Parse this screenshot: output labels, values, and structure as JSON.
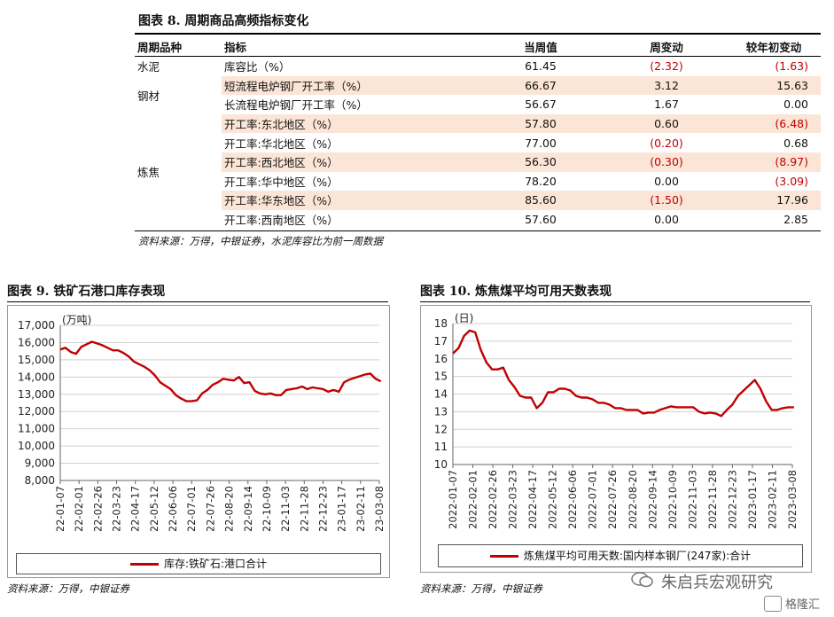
{
  "fig8": {
    "title": "图表 8. 周期商品高频指标变化",
    "headers": [
      "周期品种",
      "指标",
      "当周值",
      "周变动",
      "较年初变动"
    ],
    "groups": [
      {
        "name": "水泥",
        "rows": [
          {
            "indicator": "库容比（%）",
            "value": "61.45",
            "weekly": "(2.32)",
            "ytd": "(1.63)",
            "weekly_neg": true,
            "ytd_neg": true,
            "shade": false
          }
        ]
      },
      {
        "name": "钢材",
        "rows": [
          {
            "indicator": "短流程电炉钢厂开工率（%）",
            "value": "66.67",
            "weekly": "3.12",
            "ytd": "15.63",
            "weekly_neg": false,
            "ytd_neg": false,
            "shade": true
          },
          {
            "indicator": "长流程电炉钢厂开工率（%）",
            "value": "56.67",
            "weekly": "1.67",
            "ytd": "0.00",
            "weekly_neg": false,
            "ytd_neg": false,
            "shade": false
          }
        ]
      },
      {
        "name": "炼焦",
        "rows": [
          {
            "indicator": "开工率:东北地区（%）",
            "value": "57.80",
            "weekly": "0.60",
            "ytd": "(6.48)",
            "weekly_neg": false,
            "ytd_neg": true,
            "shade": true
          },
          {
            "indicator": "开工率:华北地区（%）",
            "value": "77.00",
            "weekly": "(0.20)",
            "ytd": "0.68",
            "weekly_neg": true,
            "ytd_neg": false,
            "shade": false
          },
          {
            "indicator": "开工率:西北地区（%）",
            "value": "56.30",
            "weekly": "(0.30)",
            "ytd": "(8.97)",
            "weekly_neg": true,
            "ytd_neg": true,
            "shade": true
          },
          {
            "indicator": "开工率:华中地区（%）",
            "value": "78.20",
            "weekly": "0.00",
            "ytd": "(3.09)",
            "weekly_neg": false,
            "ytd_neg": true,
            "shade": false
          },
          {
            "indicator": "开工率:华东地区（%）",
            "value": "85.60",
            "weekly": "(1.50)",
            "ytd": "17.96",
            "weekly_neg": true,
            "ytd_neg": false,
            "shade": true
          },
          {
            "indicator": "开工率:西南地区（%）",
            "value": "57.60",
            "weekly": "0.00",
            "ytd": "2.85",
            "weekly_neg": false,
            "ytd_neg": false,
            "shade": false
          }
        ]
      }
    ],
    "source": "资料来源：万得，中银证券，水泥库容比为前一周数据"
  },
  "fig9": {
    "title": "图表 9. 铁矿石港口库存表现",
    "source": "资料来源：万得，中银证券"
  },
  "fig10": {
    "title": "图表 10. 炼焦煤平均可用天数表现",
    "source": "资料来源：万得，中银证券"
  },
  "watermark": {
    "account": "朱启兵宏观研究",
    "logo_text": "格隆汇"
  },
  "colors": {
    "series": "#c00000",
    "negative": "#c00000",
    "shade": "#fbe5d6"
  },
  "chart_data": [
    {
      "type": "line",
      "unit_label": "(万吨)",
      "ylim": [
        8000,
        17000
      ],
      "yticks": [
        "8,000",
        "9,000",
        "10,000",
        "11,000",
        "12,000",
        "13,000",
        "14,000",
        "15,000",
        "16,000",
        "17,000"
      ],
      "xticks": [
        "2022-01-07",
        "2022-02-01",
        "2022-02-26",
        "2022-03-23",
        "2022-04-17",
        "2022-05-12",
        "2022-06-06",
        "2022-07-01",
        "2022-07-26",
        "2022-08-20",
        "2022-09-14",
        "2022-10-09",
        "2022-11-03",
        "2022-11-28",
        "2022-12-23",
        "2023-01-17",
        "2023-02-11",
        "2023-03-08"
      ],
      "grid": true,
      "legend_position": "bottom",
      "series": [
        {
          "name": "库存:铁矿石:港口合计",
          "x": [
            "2022-01-07",
            "2022-01-14",
            "2022-01-21",
            "2022-01-28",
            "2022-02-04",
            "2022-02-11",
            "2022-02-18",
            "2022-02-25",
            "2022-03-04",
            "2022-03-11",
            "2022-03-18",
            "2022-03-25",
            "2022-04-01",
            "2022-04-08",
            "2022-04-15",
            "2022-04-22",
            "2022-04-29",
            "2022-05-06",
            "2022-05-13",
            "2022-05-20",
            "2022-05-27",
            "2022-06-03",
            "2022-06-10",
            "2022-06-17",
            "2022-06-24",
            "2022-07-01",
            "2022-07-08",
            "2022-07-15",
            "2022-07-22",
            "2022-07-29",
            "2022-08-05",
            "2022-08-12",
            "2022-08-19",
            "2022-08-26",
            "2022-09-02",
            "2022-09-09",
            "2022-09-16",
            "2022-09-23",
            "2022-09-30",
            "2022-10-07",
            "2022-10-14",
            "2022-10-21",
            "2022-10-28",
            "2022-11-04",
            "2022-11-11",
            "2022-11-18",
            "2022-11-25",
            "2022-12-02",
            "2022-12-09",
            "2022-12-16",
            "2022-12-23",
            "2022-12-30",
            "2023-01-06",
            "2023-01-13",
            "2023-01-20",
            "2023-01-27",
            "2023-02-03",
            "2023-02-10",
            "2023-02-17",
            "2023-02-24",
            "2023-03-03",
            "2023-03-10"
          ],
          "values": [
            15600,
            15700,
            15450,
            15350,
            15750,
            15900,
            16050,
            15950,
            15850,
            15700,
            15550,
            15550,
            15400,
            15200,
            14900,
            14750,
            14600,
            14400,
            14100,
            13700,
            13500,
            13300,
            12950,
            12750,
            12600,
            12600,
            12650,
            13050,
            13250,
            13550,
            13700,
            13900,
            13850,
            13800,
            14000,
            13650,
            13700,
            13200,
            13050,
            13000,
            13050,
            12950,
            12950,
            13250,
            13300,
            13350,
            13450,
            13300,
            13400,
            13350,
            13300,
            13150,
            13250,
            13150,
            13700,
            13850,
            13950,
            14050,
            14150,
            14200,
            13900,
            13750
          ]
        }
      ]
    },
    {
      "type": "line",
      "unit_label": "(日)",
      "ylim": [
        10,
        18
      ],
      "yticks": [
        "10",
        "11",
        "12",
        "13",
        "14",
        "15",
        "16",
        "17",
        "18"
      ],
      "xticks": [
        "2022-01-07",
        "2022-02-01",
        "2022-02-26",
        "2022-03-23",
        "2022-04-17",
        "2022-05-12",
        "2022-06-06",
        "2022-07-01",
        "2022-07-26",
        "2022-08-20",
        "2022-09-14",
        "2022-10-09",
        "2022-11-03",
        "2022-11-28",
        "2022-12-23",
        "2023-01-17",
        "2023-02-11",
        "2023-03-08"
      ],
      "grid": true,
      "legend_position": "bottom",
      "series": [
        {
          "name": "炼焦煤平均可用天数:国内样本钢厂(247家):合计",
          "x": [
            "2022-01-07",
            "2022-01-14",
            "2022-01-21",
            "2022-01-28",
            "2022-02-04",
            "2022-02-11",
            "2022-02-18",
            "2022-02-25",
            "2022-03-04",
            "2022-03-11",
            "2022-03-18",
            "2022-03-25",
            "2022-04-01",
            "2022-04-08",
            "2022-04-15",
            "2022-04-22",
            "2022-04-29",
            "2022-05-06",
            "2022-05-13",
            "2022-05-20",
            "2022-05-27",
            "2022-06-03",
            "2022-06-10",
            "2022-06-17",
            "2022-06-24",
            "2022-07-01",
            "2022-07-08",
            "2022-07-15",
            "2022-07-22",
            "2022-07-29",
            "2022-08-05",
            "2022-08-12",
            "2022-08-19",
            "2022-08-26",
            "2022-09-02",
            "2022-09-09",
            "2022-09-16",
            "2022-09-23",
            "2022-09-30",
            "2022-10-07",
            "2022-10-14",
            "2022-10-21",
            "2022-10-28",
            "2022-11-04",
            "2022-11-11",
            "2022-11-18",
            "2022-11-25",
            "2022-12-02",
            "2022-12-09",
            "2022-12-16",
            "2022-12-23",
            "2022-12-30",
            "2023-01-06",
            "2023-01-13",
            "2023-01-20",
            "2023-01-27",
            "2023-02-03",
            "2023-02-10",
            "2023-02-17",
            "2023-02-24",
            "2023-03-03",
            "2023-03-10"
          ],
          "values": [
            16.3,
            16.6,
            17.3,
            17.6,
            17.5,
            16.5,
            15.8,
            15.4,
            15.4,
            15.5,
            14.8,
            14.4,
            13.9,
            13.8,
            13.8,
            13.2,
            13.5,
            14.1,
            14.1,
            14.3,
            14.3,
            14.2,
            13.9,
            13.8,
            13.8,
            13.7,
            13.5,
            13.5,
            13.4,
            13.2,
            13.2,
            13.1,
            13.1,
            13.1,
            12.9,
            12.95,
            12.95,
            13.1,
            13.2,
            13.3,
            13.25,
            13.25,
            13.25,
            13.25,
            13.0,
            12.9,
            12.95,
            12.9,
            12.75,
            13.1,
            13.4,
            13.9,
            14.2,
            14.5,
            14.8,
            14.3,
            13.6,
            13.1,
            13.1,
            13.2,
            13.25,
            13.25
          ]
        }
      ]
    }
  ]
}
